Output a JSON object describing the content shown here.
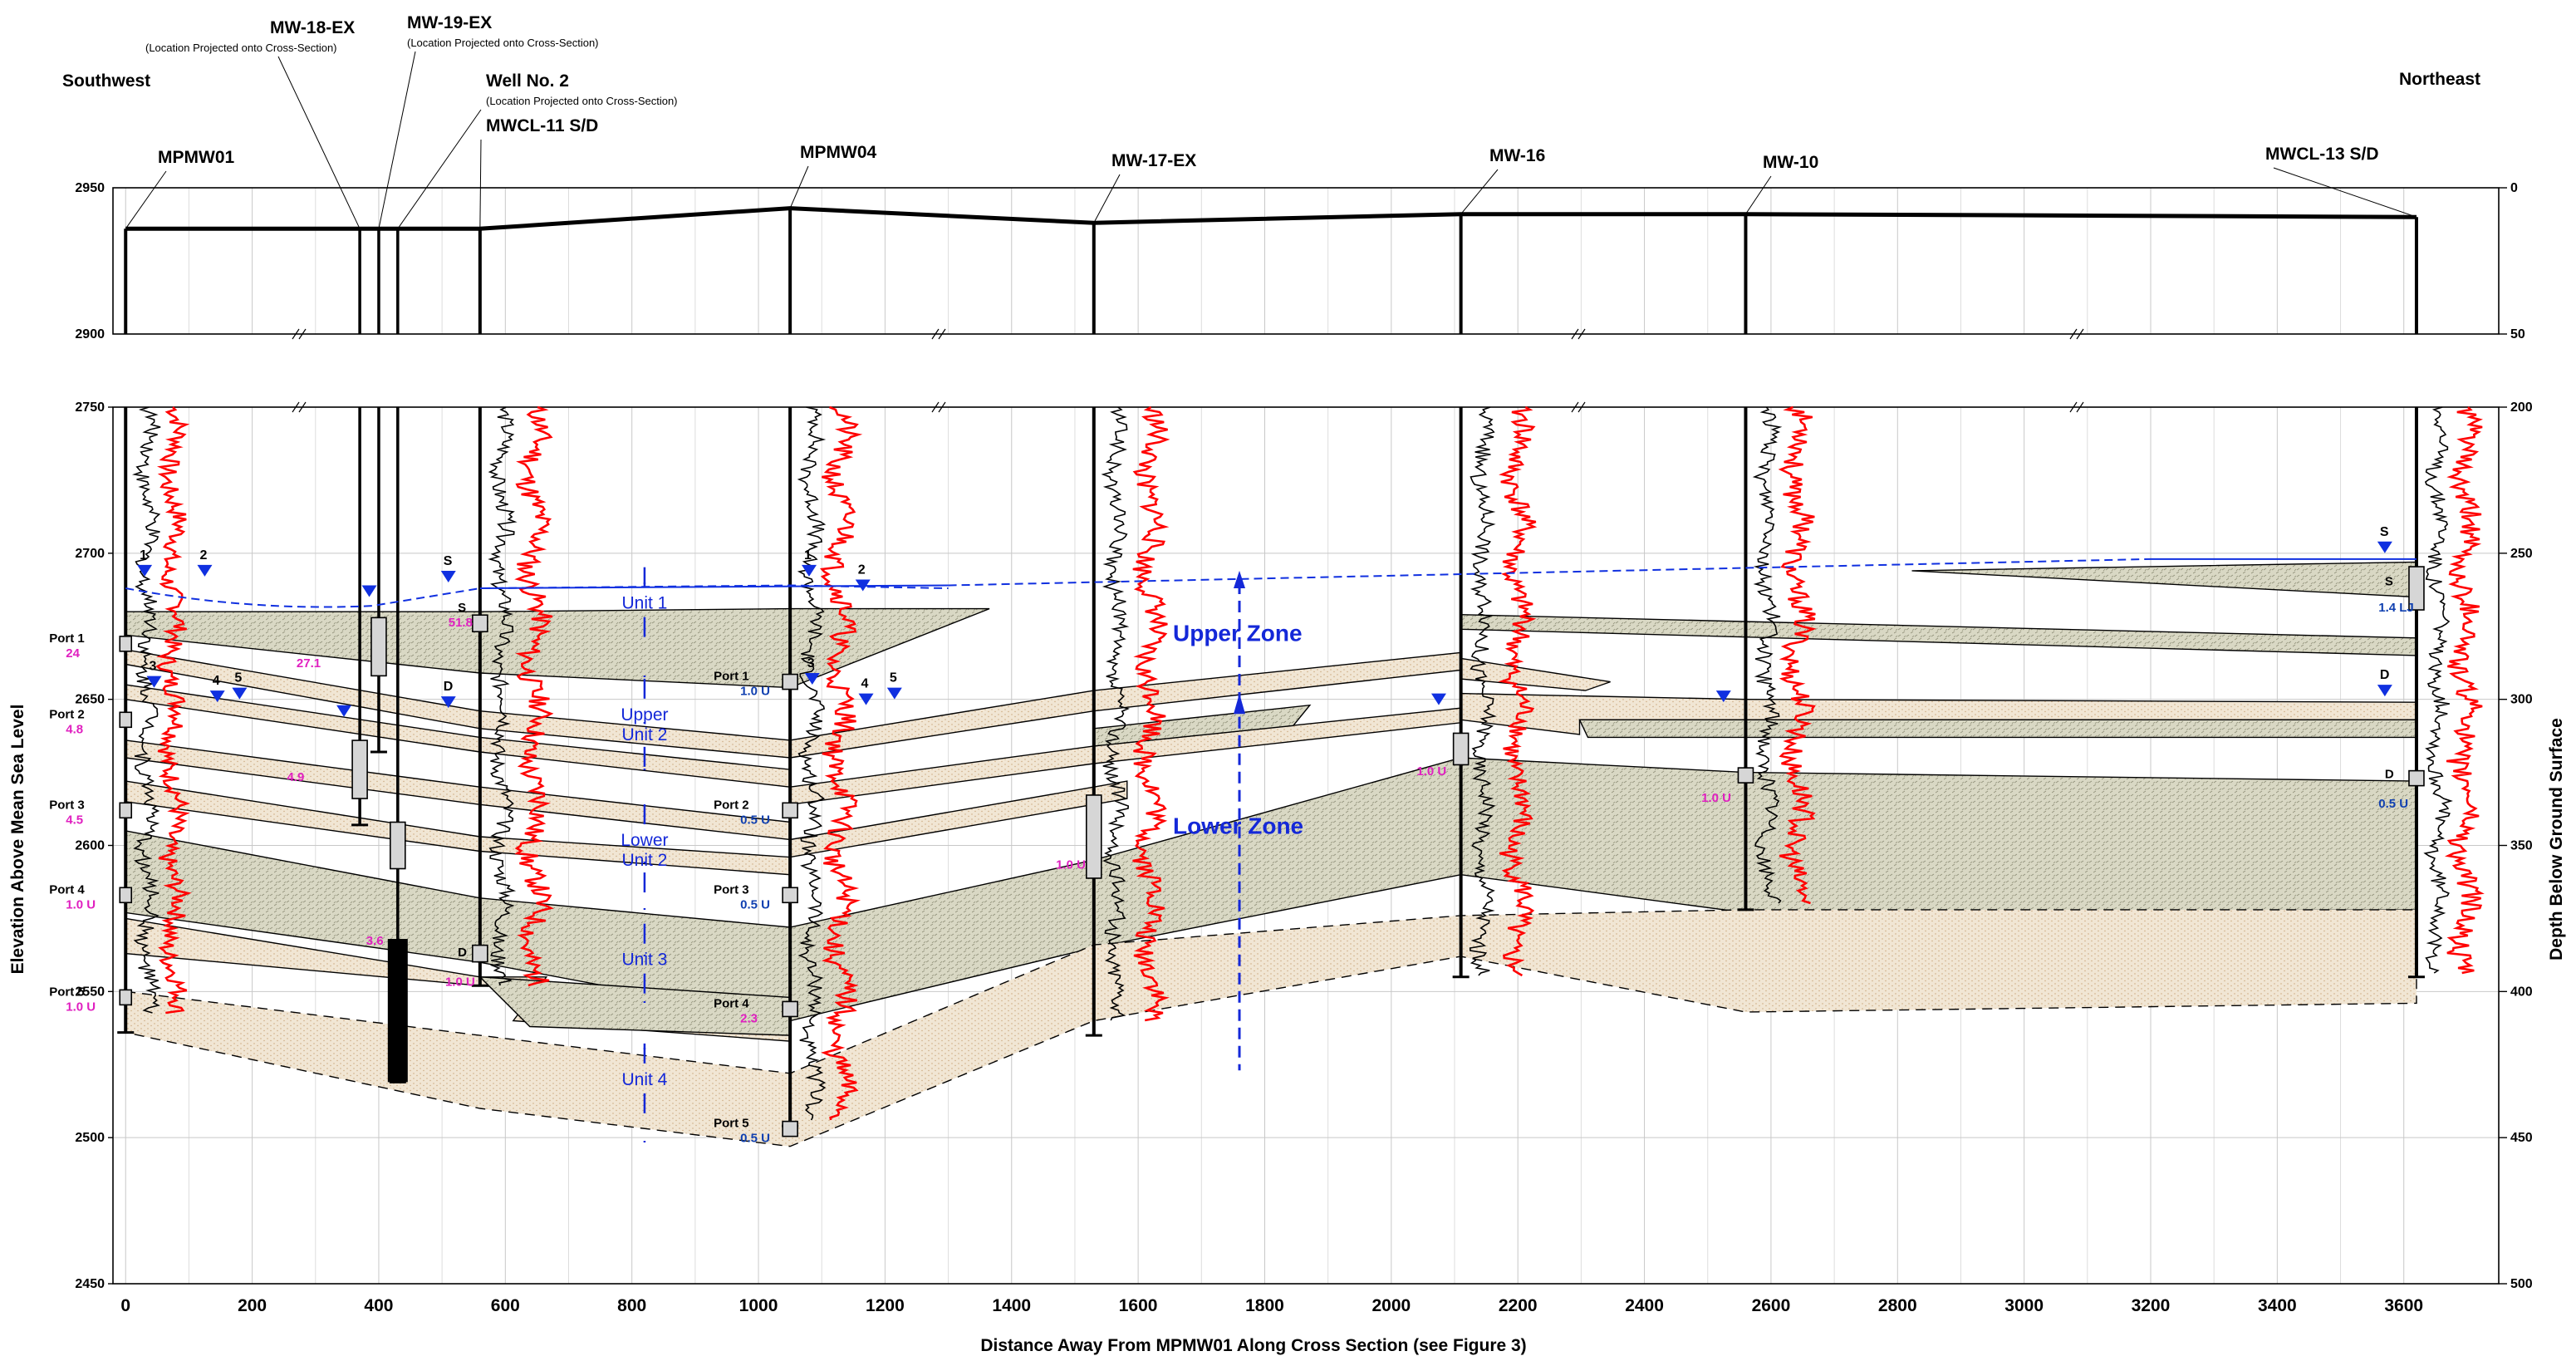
{
  "labels": {
    "southwest": "Southwest",
    "northeast": "Northeast",
    "x_axis_title": "Distance Away From MPMW01 Along Cross Section (see Figure 3)",
    "y_left_title": "Elevation Above Mean Sea Level",
    "y_right_title": "Depth Below Ground Surface",
    "projected_note": "(Location Projected onto Cross-Section)"
  },
  "axes": {
    "x_ticks": [
      "0",
      "200",
      "400",
      "600",
      "800",
      "1000",
      "1200",
      "1400",
      "1600",
      "1800",
      "2000",
      "2200",
      "2400",
      "2600",
      "2800",
      "3000",
      "3200",
      "3400",
      "3600"
    ],
    "x_range": [
      -20,
      3750
    ],
    "upper_elev_ticks": [
      "2950",
      "2900"
    ],
    "upper_depth_ticks": [
      "0",
      "50"
    ],
    "lower_elev_ticks": [
      "2750",
      "2700",
      "2650",
      "2600",
      "2550",
      "2500",
      "2450"
    ],
    "lower_depth_ticks": [
      "200",
      "250",
      "300",
      "350",
      "400",
      "450",
      "500"
    ],
    "upper_elev_range": [
      2900,
      2950
    ],
    "lower_elev_range": [
      2450,
      2750
    ]
  },
  "wells": [
    {
      "name": "MPMW01",
      "distance": 0,
      "ground": 2936,
      "projected": false
    },
    {
      "name": "MW-18-EX",
      "distance": 370,
      "ground": 2936,
      "projected": true
    },
    {
      "name": "MW-19-EX",
      "distance": 400,
      "ground": 2936,
      "projected": true
    },
    {
      "name": "Well No. 2",
      "distance": 430,
      "ground": 2936,
      "projected": true
    },
    {
      "name": "MWCL-11 S/D",
      "distance": 560,
      "ground": 2936,
      "projected": false
    },
    {
      "name": "MPMW04",
      "distance": 1050,
      "ground": 2943,
      "projected": false
    },
    {
      "name": "MW-17-EX",
      "distance": 1530,
      "ground": 2938,
      "projected": false
    },
    {
      "name": "MW-16",
      "distance": 2110,
      "ground": 2941,
      "projected": false
    },
    {
      "name": "MW-10",
      "distance": 2560,
      "ground": 2941,
      "projected": false
    },
    {
      "name": "MWCL-13 S/D",
      "distance": 3620,
      "ground": 2940,
      "projected": false
    }
  ],
  "ports": [
    {
      "label": "Port 1",
      "value": "24",
      "unit_flag": false,
      "distance": 0,
      "elev": 2669
    },
    {
      "label": "Port 2",
      "value": "4.8",
      "unit_flag": false,
      "distance": 0,
      "elev": 2643
    },
    {
      "label": "Port 3",
      "value": "4.5",
      "unit_flag": false,
      "distance": 0,
      "elev": 2612
    },
    {
      "label": "Port 4",
      "value": "1.0 U",
      "unit_flag": true,
      "distance": 0,
      "elev": 2583
    },
    {
      "label": "Port 5",
      "value": "1.0 U",
      "unit_flag": true,
      "distance": 0,
      "elev": 2548
    },
    {
      "label": "Port 1",
      "value": "1.0 U",
      "unit_flag": true,
      "distance": 1050,
      "elev": 2656
    },
    {
      "label": "Port 2",
      "value": "0.5 U",
      "unit_flag": true,
      "distance": 1050,
      "elev": 2612
    },
    {
      "label": "Port 3",
      "value": "0.5 U",
      "unit_flag": true,
      "distance": 1050,
      "elev": 2583
    },
    {
      "label": "Port 4",
      "value": "2.3",
      "unit_flag": false,
      "distance": 1050,
      "elev": 2544
    },
    {
      "label": "Port 5",
      "value": "0.5 U",
      "unit_flag": true,
      "distance": 1050,
      "elev": 2503
    }
  ],
  "screen_values": [
    {
      "text": "27.1",
      "color": "#e020c0",
      "distance": 270,
      "elev": 2661
    },
    {
      "text": "51.8",
      "color": "#e020c0",
      "distance": 510,
      "elev": 2675
    },
    {
      "text": "S",
      "color": "#000000",
      "distance": 525,
      "elev": 2680
    },
    {
      "text": "4.9",
      "color": "#e020c0",
      "distance": 255,
      "elev": 2622
    },
    {
      "text": "3.6",
      "color": "#e020c0",
      "distance": 380,
      "elev": 2566
    },
    {
      "text": "D",
      "color": "#000000",
      "distance": 525,
      "elev": 2562
    },
    {
      "text": "1.0 U",
      "color": "#e020c0",
      "distance": 505,
      "elev": 2552
    },
    {
      "text": "1.0 U",
      "color": "#e020c0",
      "distance": 1470,
      "elev": 2592
    },
    {
      "text": "1.0 U",
      "color": "#e020c0",
      "distance": 2040,
      "elev": 2624
    },
    {
      "text": "1.0 U",
      "color": "#e020c0",
      "distance": 2490,
      "elev": 2615
    },
    {
      "text": "S",
      "color": "#000000",
      "distance": 3570,
      "elev": 2689
    },
    {
      "text": "1.4 LJ",
      "color": "#1040b0",
      "distance": 3560,
      "elev": 2680
    },
    {
      "text": "D",
      "color": "#000000",
      "distance": 3570,
      "elev": 2623
    },
    {
      "text": "0.5 U",
      "color": "#1040b0",
      "distance": 3560,
      "elev": 2613
    }
  ],
  "water_levels": [
    {
      "label": "1",
      "distance": 30,
      "elev": 2694
    },
    {
      "label": "2",
      "distance": 125,
      "elev": 2694
    },
    {
      "label": "",
      "distance": 385,
      "elev": 2687
    },
    {
      "label": "S",
      "distance": 510,
      "elev": 2692
    },
    {
      "label": "3",
      "distance": 45,
      "elev": 2656
    },
    {
      "label": "4",
      "distance": 145,
      "elev": 2651
    },
    {
      "label": "5",
      "distance": 180,
      "elev": 2652
    },
    {
      "label": "",
      "distance": 345,
      "elev": 2646
    },
    {
      "label": "D",
      "distance": 510,
      "elev": 2649
    },
    {
      "label": "1",
      "distance": 1080,
      "elev": 2694
    },
    {
      "label": "2",
      "distance": 1165,
      "elev": 2689
    },
    {
      "label": "3",
      "distance": 1085,
      "elev": 2657
    },
    {
      "label": "4",
      "distance": 1170,
      "elev": 2650
    },
    {
      "label": "5",
      "distance": 1215,
      "elev": 2652
    },
    {
      "label": "",
      "distance": 2075,
      "elev": 2650
    },
    {
      "label": "",
      "distance": 2525,
      "elev": 2651
    },
    {
      "label": "S",
      "distance": 3570,
      "elev": 2702
    },
    {
      "label": "D",
      "distance": 3570,
      "elev": 2653
    }
  ],
  "units": [
    {
      "name": "Unit 1",
      "distance": 820,
      "elev": 2681
    },
    {
      "name": "Upper Unit 2",
      "distance": 820,
      "elev": 2640
    },
    {
      "name": "Lower Unit 2",
      "distance": 820,
      "elev": 2597
    },
    {
      "name": "Unit 3",
      "distance": 820,
      "elev": 2559
    },
    {
      "name": "Unit 4",
      "distance": 820,
      "elev": 2518
    }
  ],
  "zones": [
    {
      "name": "Upper Zone",
      "distance": 1760,
      "elev": 2670
    },
    {
      "name": "Lower Zone",
      "distance": 1760,
      "elev": 2604
    }
  ],
  "colors": {
    "water_table": "#1030e0",
    "gamma_log": "#ff0000",
    "port_value": "#e020c0",
    "port_value_nd": "#1040b0",
    "clay_fill": "#d9d8c4",
    "sand_fill": "#f1e6d4",
    "label_blue": "#1428d8"
  }
}
